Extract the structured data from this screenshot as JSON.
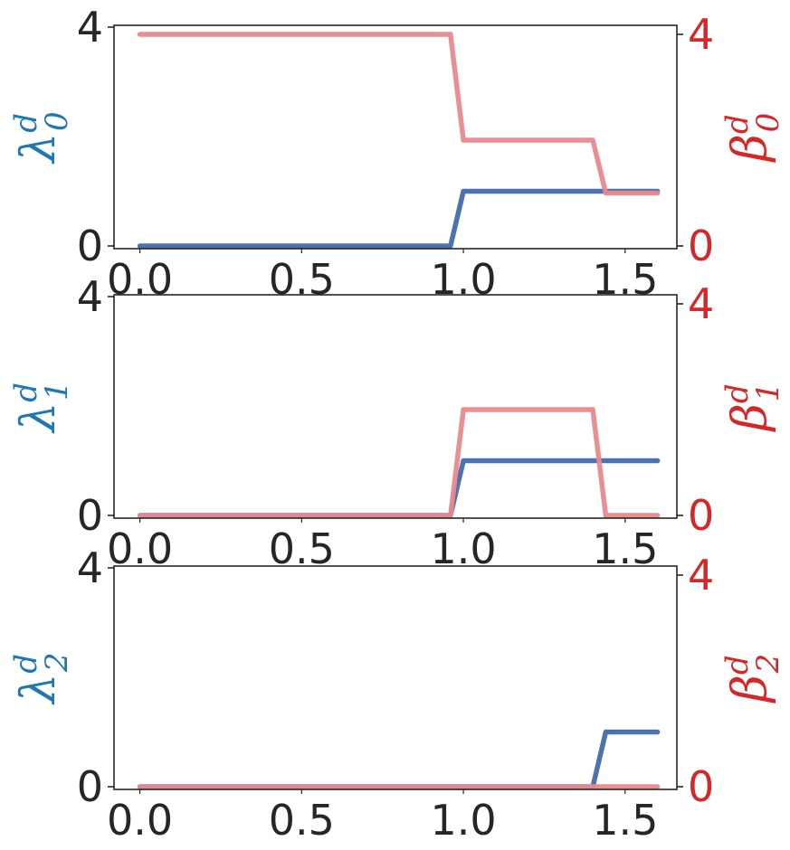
{
  "colors": {
    "lambda_line": "#4c72b0",
    "beta_line": "#e8898e",
    "left_axis_label": "#1f77b4",
    "right_axis_label": "#d62728",
    "text": "#262626"
  },
  "chart_data": [
    {
      "type": "line",
      "title": "",
      "xlim": [
        -0.08,
        1.66
      ],
      "ylim": [
        0,
        4
      ],
      "y2lim": [
        0,
        4
      ],
      "x_ticks": [
        "0.0",
        "0.5",
        "1.0",
        "1.5"
      ],
      "y_ticks": [
        "0",
        "4"
      ],
      "y2_ticks": [
        "0",
        "4"
      ],
      "ylabel": {
        "base": "λ",
        "sup": "d",
        "sub": "0"
      },
      "y2label": {
        "base": "β",
        "sup": "d",
        "sub": "0"
      },
      "grid": false,
      "series": [
        {
          "axis": "left",
          "x": [
            0.0,
            0.96,
            1.0,
            1.6
          ],
          "y": [
            0,
            0,
            1,
            1
          ]
        },
        {
          "axis": "right",
          "x": [
            0.0,
            0.96,
            1.0,
            1.4,
            1.44,
            1.6
          ],
          "y": [
            4,
            4,
            2,
            2,
            1,
            1
          ]
        }
      ]
    },
    {
      "type": "line",
      "title": "",
      "xlim": [
        -0.08,
        1.66
      ],
      "ylim": [
        0,
        4
      ],
      "y2lim": [
        0,
        4
      ],
      "x_ticks": [
        "0.0",
        "0.5",
        "1.0",
        "1.5"
      ],
      "y_ticks": [
        "0",
        "4"
      ],
      "y2_ticks": [
        "0",
        "4"
      ],
      "ylabel": {
        "base": "λ",
        "sup": "d",
        "sub": "1"
      },
      "y2label": {
        "base": "β",
        "sup": "d",
        "sub": "1"
      },
      "grid": false,
      "series": [
        {
          "axis": "left",
          "x": [
            0.0,
            0.96,
            1.0,
            1.6
          ],
          "y": [
            0,
            0,
            1,
            1
          ]
        },
        {
          "axis": "right",
          "x": [
            0.0,
            0.96,
            1.0,
            1.4,
            1.44,
            1.6
          ],
          "y": [
            0,
            0,
            2,
            2,
            0,
            0
          ]
        }
      ]
    },
    {
      "type": "line",
      "title": "",
      "xlim": [
        -0.08,
        1.66
      ],
      "ylim": [
        0,
        4
      ],
      "y2lim": [
        0,
        4
      ],
      "x_ticks": [
        "0.0",
        "0.5",
        "1.0",
        "1.5"
      ],
      "y_ticks": [
        "0",
        "4"
      ],
      "y2_ticks": [
        "0",
        "4"
      ],
      "ylabel": {
        "base": "λ",
        "sup": "d",
        "sub": "2"
      },
      "y2label": {
        "base": "β",
        "sup": "d",
        "sub": "2"
      },
      "grid": false,
      "series": [
        {
          "axis": "left",
          "x": [
            0.0,
            1.4,
            1.44,
            1.6
          ],
          "y": [
            0,
            0,
            1,
            1
          ]
        },
        {
          "axis": "right",
          "x": [
            0.0,
            1.6
          ],
          "y": [
            0,
            0
          ]
        }
      ]
    }
  ]
}
